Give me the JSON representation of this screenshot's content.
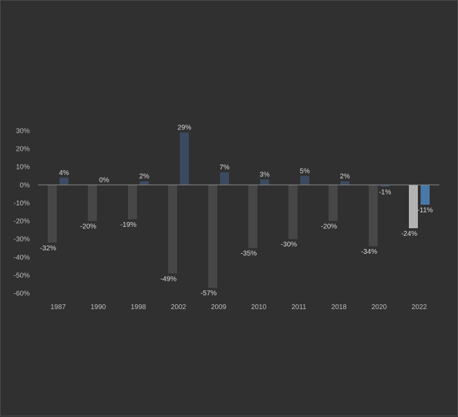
{
  "chart_data": {
    "type": "bar",
    "categories": [
      "1987",
      "1990",
      "1998",
      "2002",
      "2009",
      "2010",
      "2011",
      "2018",
      "2020",
      "2022"
    ],
    "series": [
      {
        "values": [
          -32,
          -20,
          -19,
          -49,
          -57,
          -35,
          -30,
          -20,
          -34,
          -24
        ],
        "labels": [
          "-32%",
          "-20%",
          "-19%",
          "-49%",
          "-57%",
          "-35%",
          "-30%",
          "-20%",
          "-34%",
          "-24%"
        ],
        "color": "#474747",
        "highlight_last_color": "#b3b3b3"
      },
      {
        "values": [
          4,
          0,
          2,
          29,
          7,
          3,
          5,
          2,
          -1,
          -11
        ],
        "labels": [
          "4%",
          "0%",
          "2%",
          "29%",
          "7%",
          "3%",
          "5%",
          "2%",
          "-1%",
          "-11%"
        ],
        "color": "#3b4a60",
        "highlight_last_color": "#4a78a8"
      }
    ],
    "y_ticks": [
      "30%",
      "20%",
      "10%",
      "0%",
      "-10%",
      "-20%",
      "-30%",
      "-40%",
      "-50%",
      "-60%"
    ],
    "ylim": [
      -60,
      30
    ],
    "grid": false,
    "legend": "none"
  }
}
